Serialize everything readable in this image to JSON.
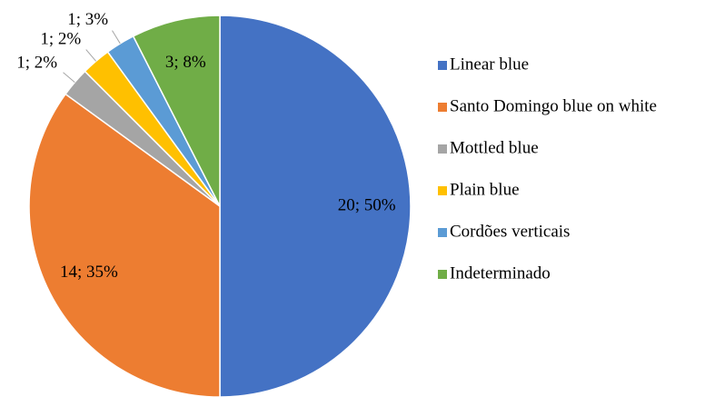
{
  "chart_data": {
    "type": "pie",
    "categories": [
      "Linear blue",
      "Santo Domingo blue on white",
      "Mottled blue",
      "Plain blue",
      "Cordões verticais",
      "Indeterminado"
    ],
    "values": [
      20,
      14,
      1,
      1,
      1,
      3
    ],
    "value_labels": [
      "20; 50%",
      "14; 35%",
      "1; 2%",
      "1; 2%",
      "1; 3%",
      "3; 8%"
    ],
    "colors": [
      "#4472c4",
      "#ed7d31",
      "#a5a5a5",
      "#ffc000",
      "#5b9bd5",
      "#70ad47"
    ],
    "legend": "right"
  }
}
